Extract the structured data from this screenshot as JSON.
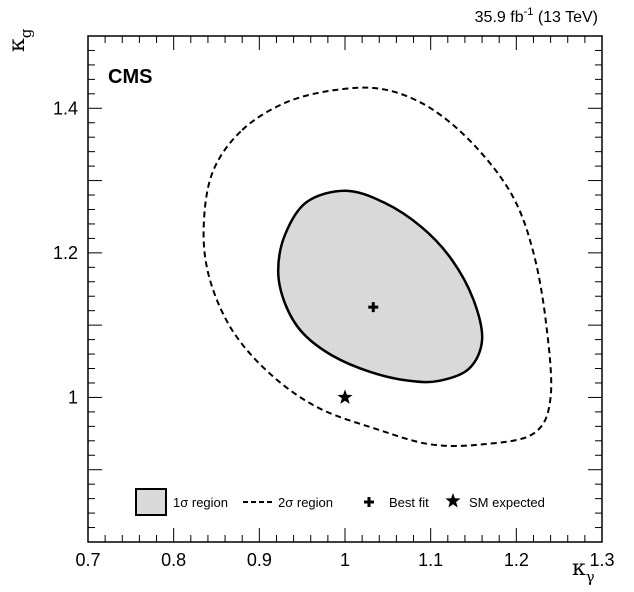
{
  "chart_data": {
    "type": "contour",
    "experiment_label": "CMS",
    "luminosity_label": "35.9 fb",
    "luminosity_exponent": "-1",
    "energy_label": " (13 TeV)",
    "xlabel": "κ",
    "xlabel_sub": "γ",
    "ylabel": "κ",
    "ylabel_sub": "g",
    "xlim": [
      0.7,
      1.3
    ],
    "ylim": [
      0.8,
      1.5
    ],
    "x_tick_values": [
      0.7,
      0.8,
      0.9,
      1.0,
      1.1,
      1.2,
      1.3
    ],
    "x_tick_labels": [
      "0.7",
      "0.8",
      "0.9",
      "1",
      "1.1",
      "1.2",
      "1.3"
    ],
    "y_tick_values": [
      1.0,
      1.2,
      1.4
    ],
    "y_tick_labels": [
      "1",
      "1.2",
      "1.4"
    ],
    "best_fit": {
      "x": 1.033,
      "y": 1.125
    },
    "sm_expected": {
      "x": 1.0,
      "y": 1.0
    },
    "region_1sigma": [
      [
        0.955,
        1.27
      ],
      [
        1.0,
        1.286
      ],
      [
        1.045,
        1.27
      ],
      [
        1.09,
        1.235
      ],
      [
        1.125,
        1.19
      ],
      [
        1.15,
        1.135
      ],
      [
        1.16,
        1.08
      ],
      [
        1.145,
        1.04
      ],
      [
        1.11,
        1.023
      ],
      [
        1.075,
        1.023
      ],
      [
        1.03,
        1.035
      ],
      [
        0.985,
        1.058
      ],
      [
        0.95,
        1.09
      ],
      [
        0.93,
        1.13
      ],
      [
        0.922,
        1.175
      ],
      [
        0.93,
        1.225
      ]
    ],
    "region_2sigma": [
      [
        0.88,
        1.37
      ],
      [
        0.935,
        1.41
      ],
      [
        1.0,
        1.427
      ],
      [
        1.05,
        1.425
      ],
      [
        1.1,
        1.4
      ],
      [
        1.15,
        1.35
      ],
      [
        1.195,
        1.28
      ],
      [
        1.22,
        1.2
      ],
      [
        1.235,
        1.1
      ],
      [
        1.24,
        1.0
      ],
      [
        1.22,
        0.95
      ],
      [
        1.16,
        0.935
      ],
      [
        1.1,
        0.935
      ],
      [
        1.04,
        0.955
      ],
      [
        0.97,
        0.985
      ],
      [
        0.915,
        1.03
      ],
      [
        0.87,
        1.09
      ],
      [
        0.843,
        1.16
      ],
      [
        0.835,
        1.23
      ],
      [
        0.845,
        1.31
      ]
    ],
    "legend": {
      "placement": "bottom",
      "entries": [
        "1σ region",
        "2σ region",
        "Best fit",
        "SM expected"
      ]
    }
  }
}
